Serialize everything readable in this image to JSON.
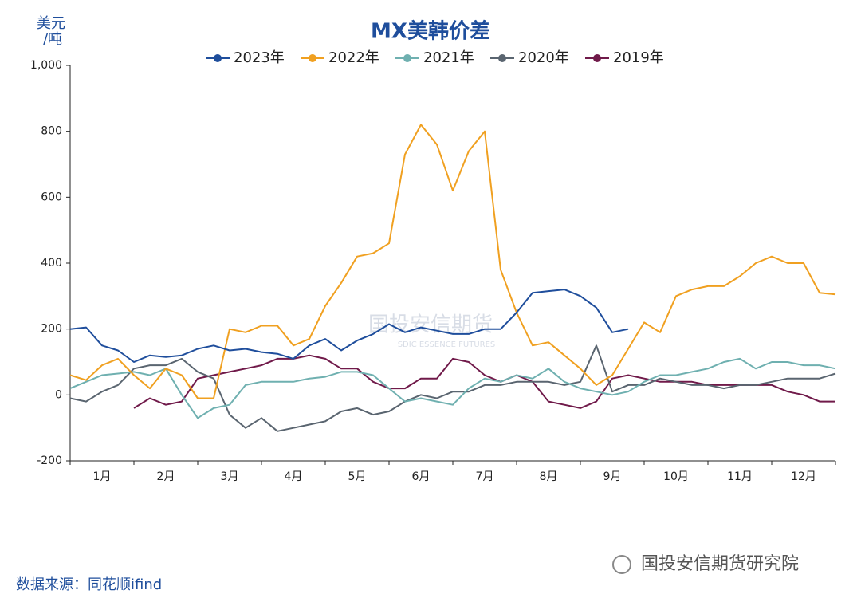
{
  "chart_data": {
    "type": "line",
    "title": "MX美韩价差",
    "ylabel": [
      "美元",
      "/吨"
    ],
    "source": "数据来源：同花顺ifind",
    "watermark": "国投安信期货",
    "watermark_en": "SDIC ESSENCE FUTURES",
    "brand": "国投安信期货研究院",
    "categories": [
      "1月",
      "2月",
      "3月",
      "4月",
      "5月",
      "6月",
      "7月",
      "8月",
      "9月",
      "10月",
      "11月",
      "12月"
    ],
    "xlim": [
      0,
      12
    ],
    "xticks": [
      0,
      1,
      2,
      3,
      4,
      5,
      6,
      7,
      8,
      9,
      10,
      11,
      12
    ],
    "ylim": [
      -200,
      1000
    ],
    "yticks": [
      -200,
      0,
      200,
      400,
      600,
      800,
      {
        "value": 1000,
        "label": "1,000"
      }
    ],
    "x": [
      0,
      0.25,
      0.5,
      0.75,
      1,
      1.25,
      1.5,
      1.75,
      2,
      2.25,
      2.5,
      2.75,
      3,
      3.25,
      3.5,
      3.75,
      4,
      4.25,
      4.5,
      4.75,
      5,
      5.25,
      5.5,
      5.75,
      6,
      6.25,
      6.5,
      6.75,
      7,
      7.25,
      7.5,
      7.75,
      8,
      8.25,
      8.5,
      8.75,
      9,
      9.25,
      9.5,
      9.75,
      10,
      10.25,
      10.5,
      10.75,
      11,
      11.25,
      11.5,
      11.75,
      12
    ],
    "series": [
      {
        "name": "2023年",
        "color": "#1f4e9c",
        "values": [
          200,
          205,
          150,
          135,
          100,
          120,
          115,
          120,
          140,
          150,
          135,
          140,
          130,
          125,
          110,
          150,
          170,
          135,
          165,
          185,
          215,
          190,
          205,
          195,
          185,
          185,
          200,
          200,
          250,
          310,
          315,
          320,
          300,
          265,
          190,
          200,
          null,
          null,
          null,
          null,
          null,
          null,
          null,
          null,
          null,
          null,
          null,
          null,
          null
        ]
      },
      {
        "name": "2022年",
        "color": "#f0a020",
        "values": [
          60,
          45,
          90,
          110,
          60,
          20,
          80,
          60,
          -10,
          -10,
          200,
          190,
          210,
          210,
          150,
          170,
          270,
          340,
          420,
          430,
          460,
          730,
          820,
          760,
          620,
          740,
          800,
          380,
          250,
          150,
          160,
          120,
          80,
          30,
          60,
          140,
          220,
          190,
          300,
          320,
          330,
          330,
          360,
          400,
          420,
          400,
          400,
          310,
          305
        ]
      },
      {
        "name": "2021年",
        "color": "#6fb0b0",
        "values": [
          20,
          40,
          60,
          65,
          70,
          60,
          80,
          0,
          -70,
          -40,
          -30,
          30,
          40,
          40,
          40,
          50,
          55,
          70,
          70,
          60,
          20,
          -20,
          -10,
          -20,
          -30,
          20,
          50,
          40,
          60,
          50,
          80,
          40,
          20,
          10,
          0,
          10,
          40,
          60,
          60,
          70,
          80,
          100,
          110,
          80,
          100,
          100,
          90,
          90,
          80
        ]
      },
      {
        "name": "2020年",
        "color": "#5a6570",
        "values": [
          -10,
          -20,
          10,
          30,
          80,
          90,
          90,
          110,
          70,
          50,
          -60,
          -100,
          -70,
          -110,
          -100,
          -90,
          -80,
          -50,
          -40,
          -60,
          -50,
          -20,
          0,
          -10,
          10,
          10,
          30,
          30,
          40,
          40,
          40,
          30,
          40,
          150,
          10,
          30,
          30,
          50,
          40,
          30,
          30,
          20,
          30,
          30,
          40,
          50,
          50,
          50,
          65
        ]
      },
      {
        "name": "2019年",
        "color": "#701a4a",
        "values": [
          null,
          null,
          null,
          null,
          -40,
          -10,
          -30,
          -20,
          50,
          60,
          70,
          80,
          90,
          110,
          110,
          120,
          110,
          80,
          80,
          40,
          20,
          20,
          50,
          50,
          110,
          100,
          60,
          40,
          60,
          40,
          -20,
          -30,
          -40,
          -20,
          50,
          60,
          50,
          40,
          40,
          40,
          30,
          30,
          30,
          30,
          30,
          10,
          0,
          -20,
          -20
        ]
      }
    ]
  }
}
